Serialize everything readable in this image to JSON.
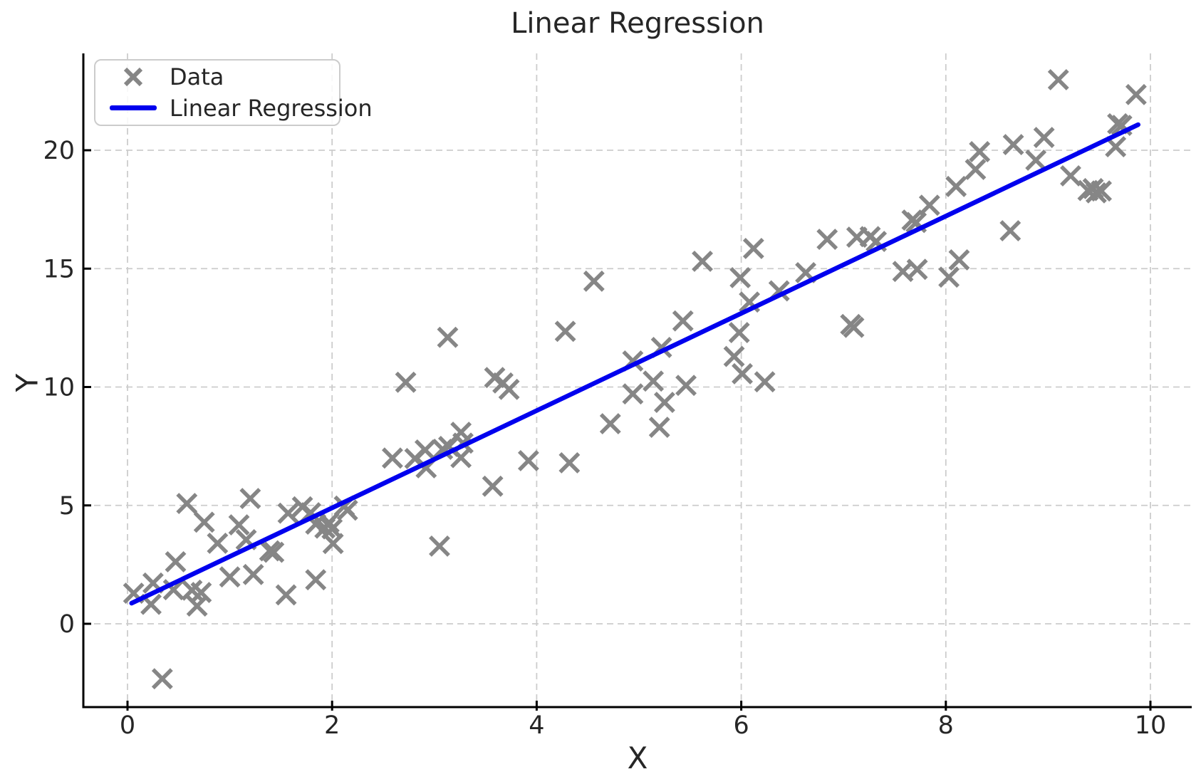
{
  "figure": {
    "title": "Linear Regression",
    "xlabel": "X",
    "ylabel": "Y"
  },
  "legend": {
    "items": [
      {
        "label": "Data",
        "sample": "x-marker"
      },
      {
        "label": "Linear Regression",
        "sample": "line"
      }
    ]
  },
  "colors": {
    "marker": "#868686",
    "regression_line": "#0000ee",
    "grid": "#cccccc",
    "spine": "#000000",
    "text": "#262626",
    "legend_border": "#cccccc"
  },
  "chart_data": {
    "type": "scatter",
    "title": "Linear Regression",
    "xlabel": "X",
    "ylabel": "Y",
    "xlim": [
      -0.43,
      10.42
    ],
    "ylim": [
      -3.52,
      24.09
    ],
    "xticks": [
      0,
      2,
      4,
      6,
      8,
      10
    ],
    "yticks": [
      0,
      5,
      10,
      15,
      20
    ],
    "grid": true,
    "grid_style": "dashed",
    "legend_position": "upper left",
    "series": [
      {
        "name": "Data",
        "type": "scatter",
        "marker": "x",
        "points": [
          [
            0.06,
            1.29
          ],
          [
            0.23,
            0.82
          ],
          [
            0.25,
            1.72
          ],
          [
            0.34,
            -2.32
          ],
          [
            0.45,
            1.44
          ],
          [
            0.47,
            2.62
          ],
          [
            0.58,
            5.08
          ],
          [
            0.63,
            1.42
          ],
          [
            0.68,
            0.75
          ],
          [
            0.72,
            1.32
          ],
          [
            0.75,
            4.29
          ],
          [
            0.88,
            3.4
          ],
          [
            1.0,
            1.98
          ],
          [
            1.09,
            4.18
          ],
          [
            1.16,
            3.55
          ],
          [
            1.2,
            5.29
          ],
          [
            1.23,
            2.08
          ],
          [
            1.39,
            3.08
          ],
          [
            1.43,
            3.02
          ],
          [
            1.55,
            1.22
          ],
          [
            1.57,
            4.67
          ],
          [
            1.71,
            4.94
          ],
          [
            1.79,
            4.69
          ],
          [
            1.84,
            1.86
          ],
          [
            1.84,
            4.21
          ],
          [
            1.93,
            4.04
          ],
          [
            1.97,
            4.27
          ],
          [
            2.0,
            4.01
          ],
          [
            2.01,
            3.39
          ],
          [
            2.12,
            4.97
          ],
          [
            2.15,
            4.8
          ],
          [
            2.59,
            7.0
          ],
          [
            2.72,
            10.2
          ],
          [
            2.81,
            6.98
          ],
          [
            2.91,
            7.34
          ],
          [
            2.92,
            6.59
          ],
          [
            3.05,
            3.28
          ],
          [
            3.08,
            7.37
          ],
          [
            3.13,
            12.1
          ],
          [
            3.14,
            7.49
          ],
          [
            3.26,
            8.09
          ],
          [
            3.28,
            7.63
          ],
          [
            3.26,
            7.02
          ],
          [
            3.57,
            5.81
          ],
          [
            3.59,
            10.4
          ],
          [
            3.67,
            10.17
          ],
          [
            3.73,
            9.9
          ],
          [
            3.92,
            6.89
          ],
          [
            4.28,
            12.35
          ],
          [
            4.32,
            6.8
          ],
          [
            4.56,
            14.47
          ],
          [
            4.72,
            8.45
          ],
          [
            4.94,
            11.1
          ],
          [
            4.94,
            9.71
          ],
          [
            5.14,
            10.25
          ],
          [
            5.2,
            8.3
          ],
          [
            5.22,
            11.67
          ],
          [
            5.25,
            9.35
          ],
          [
            5.43,
            12.79
          ],
          [
            5.46,
            10.07
          ],
          [
            5.62,
            15.31
          ],
          [
            5.93,
            11.29
          ],
          [
            5.98,
            12.3
          ],
          [
            5.99,
            14.62
          ],
          [
            6.01,
            10.56
          ],
          [
            6.08,
            13.59
          ],
          [
            6.12,
            15.85
          ],
          [
            6.23,
            10.22
          ],
          [
            6.37,
            14.06
          ],
          [
            6.63,
            14.83
          ],
          [
            6.84,
            16.24
          ],
          [
            7.07,
            12.64
          ],
          [
            7.1,
            12.52
          ],
          [
            7.13,
            16.33
          ],
          [
            7.26,
            16.35
          ],
          [
            7.32,
            16.15
          ],
          [
            7.58,
            14.88
          ],
          [
            7.72,
            14.97
          ],
          [
            7.67,
            17.05
          ],
          [
            7.71,
            16.95
          ],
          [
            7.84,
            17.68
          ],
          [
            8.03,
            14.64
          ],
          [
            8.13,
            15.37
          ],
          [
            8.1,
            18.47
          ],
          [
            8.29,
            19.19
          ],
          [
            8.33,
            19.94
          ],
          [
            8.63,
            16.6
          ],
          [
            8.66,
            20.24
          ],
          [
            8.88,
            19.58
          ],
          [
            8.96,
            20.54
          ],
          [
            9.1,
            22.98
          ],
          [
            9.22,
            18.92
          ],
          [
            9.39,
            18.3
          ],
          [
            9.44,
            18.38
          ],
          [
            9.47,
            18.2
          ],
          [
            9.52,
            18.28
          ],
          [
            9.66,
            20.15
          ],
          [
            9.68,
            21.12
          ],
          [
            9.72,
            21.05
          ],
          [
            9.86,
            22.35
          ]
        ]
      },
      {
        "name": "Linear Regression",
        "type": "line",
        "points": [
          [
            0.04,
            0.87
          ],
          [
            9.88,
            21.08
          ]
        ]
      }
    ]
  }
}
